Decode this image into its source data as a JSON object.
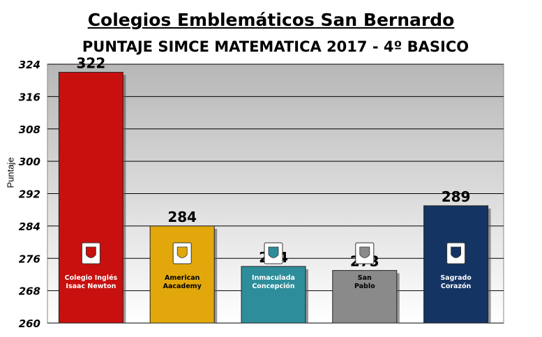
{
  "title": "Colegios Emblemáticos San Bernardo",
  "subtitle": "PUNTAJE SIMCE MATEMATICA 2017 - 4º BASICO",
  "chart_data": {
    "type": "bar",
    "title": "Colegios Emblemáticos San Bernardo",
    "subtitle": "PUNTAJE SIMCE MATEMATICA 2017 - 4º BASICO",
    "xlabel": "",
    "ylabel": "Puntaje",
    "ylim": [
      260,
      324
    ],
    "yticks": [
      260,
      268,
      276,
      284,
      292,
      300,
      308,
      316,
      324
    ],
    "grid": true,
    "legend": "none",
    "categories": [
      [
        "Colegio Inglés",
        "Isaac Newton"
      ],
      [
        "American",
        "Aacademy"
      ],
      [
        "Inmaculada",
        "Concepción"
      ],
      [
        "San",
        "Pablo"
      ],
      [
        "Sagrado",
        "Corazón"
      ]
    ],
    "values": [
      322,
      284,
      274,
      273,
      289
    ],
    "colors": [
      "#c8100e",
      "#e2a80b",
      "#2e8d9a",
      "#8a8a8a",
      "#143463"
    ],
    "label_colors": [
      "#ffffff",
      "#000000",
      "#ffffff",
      "#000000",
      "#ffffff"
    ],
    "icons": [
      "eagle-crest-icon",
      "american-academy-crest-icon",
      "inmaculada-crest-icon",
      "san-pablo-crest-icon",
      "sagrado-corazon-crest-icon"
    ]
  }
}
